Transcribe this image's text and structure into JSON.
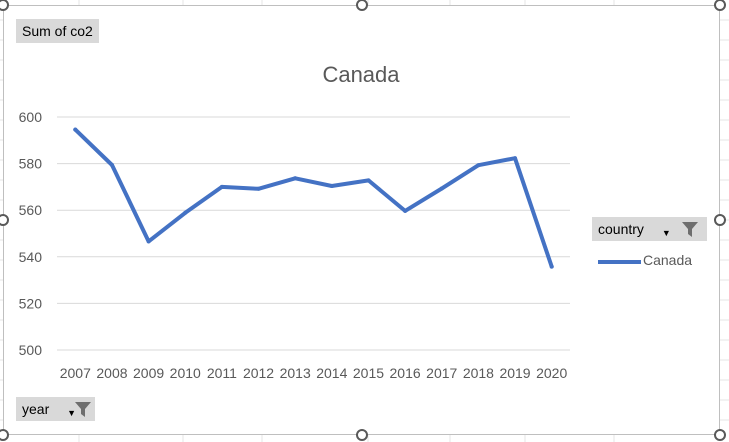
{
  "pivot_fields": {
    "values_field": "Sum of co2",
    "axis_field": "year",
    "legend_field": "country"
  },
  "colors": {
    "series": "#4472c4",
    "gridline": "#d9d9d9",
    "field_button": "#d9d9d9",
    "text": "#595959"
  },
  "chart_data": {
    "type": "line",
    "title": "Canada",
    "xlabel": "",
    "ylabel": "",
    "categories": [
      "2007",
      "2008",
      "2009",
      "2010",
      "2011",
      "2012",
      "2013",
      "2014",
      "2015",
      "2016",
      "2017",
      "2018",
      "2019",
      "2020"
    ],
    "series": [
      {
        "name": "Canada",
        "values": [
          594.6,
          579.4,
          546.6,
          558.9,
          570.0,
          569.2,
          573.7,
          570.4,
          572.8,
          559.7,
          569.3,
          579.3,
          582.3,
          535.8
        ]
      }
    ],
    "ylim": [
      500,
      600
    ],
    "yticks": [
      500,
      520,
      540,
      560,
      580,
      600
    ],
    "grid": true,
    "legend": "right"
  }
}
